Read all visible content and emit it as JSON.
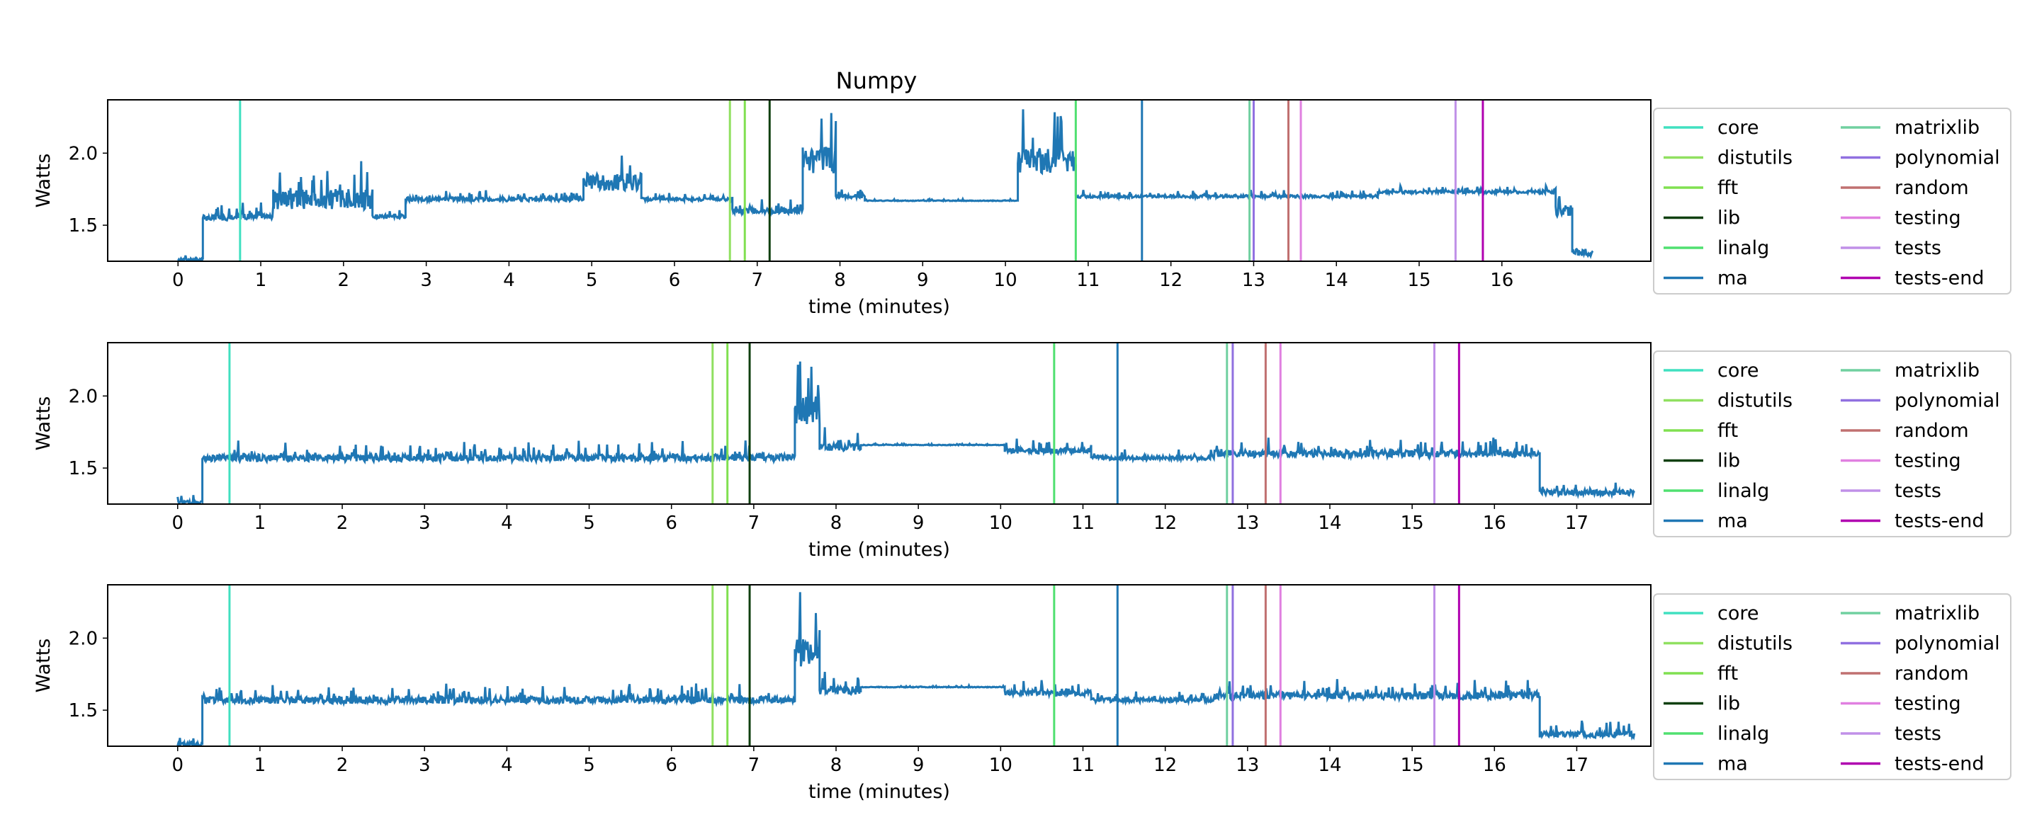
{
  "chart_data": {
    "title": "Numpy",
    "type": "line",
    "legend_placement": "right, outside plot, two columns",
    "legend": [
      {
        "label": "core",
        "color": "#40e0c0"
      },
      {
        "label": "distutils",
        "color": "#90e060"
      },
      {
        "label": "fft",
        "color": "#80e050"
      },
      {
        "label": "lib",
        "color": "#104010"
      },
      {
        "label": "linalg",
        "color": "#50e070"
      },
      {
        "label": "ma",
        "color": "#1f77b4"
      },
      {
        "label": "matrixlib",
        "color": "#70d0a0"
      },
      {
        "label": "polynomial",
        "color": "#9070e0"
      },
      {
        "label": "random",
        "color": "#c07070"
      },
      {
        "label": "testing",
        "color": "#e080e0"
      },
      {
        "label": "tests",
        "color": "#c090e8"
      },
      {
        "label": "tests-end",
        "color": "#b000b0"
      }
    ],
    "line_color": "#1f77b4",
    "panels": [
      {
        "xlabel": "time (minutes)",
        "ylabel": "Watts",
        "xlim": [
          -0.85,
          17.8
        ],
        "ylim": [
          1.25,
          2.37
        ],
        "xticks": [
          "0",
          "1",
          "2",
          "3",
          "4",
          "5",
          "6",
          "7",
          "8",
          "9",
          "10",
          "11",
          "12",
          "13",
          "14",
          "15",
          "16"
        ],
        "yticks": [
          "1.5",
          "2.0"
        ],
        "end_time": 17.1,
        "markers": [
          0.75,
          6.67,
          6.85,
          7.15,
          10.85,
          11.65,
          12.95,
          13.0,
          13.42,
          13.57,
          15.44,
          15.77
        ],
        "segments": [
          {
            "x": [
              0.0,
              0.3
            ],
            "base": 1.26,
            "noise": 0.04
          },
          {
            "x": [
              0.3,
              0.6
            ],
            "base": 1.55,
            "noise": 0.08
          },
          {
            "x": [
              0.6,
              1.15
            ],
            "base": 1.56,
            "noise": 0.08
          },
          {
            "x": [
              1.15,
              2.35
            ],
            "base": 1.68,
            "noise": 0.28
          },
          {
            "x": [
              2.35,
              2.75
            ],
            "base": 1.56,
            "noise": 0.04
          },
          {
            "x": [
              2.75,
              4.9
            ],
            "base": 1.68,
            "noise": 0.06
          },
          {
            "x": [
              4.9,
              5.6
            ],
            "base": 1.8,
            "noise": 0.25
          },
          {
            "x": [
              5.6,
              6.7
            ],
            "base": 1.68,
            "noise": 0.04
          },
          {
            "x": [
              6.7,
              7.55
            ],
            "base": 1.6,
            "noise": 0.08
          },
          {
            "x": [
              7.55,
              7.95
            ],
            "base": 1.95,
            "noise": 0.38
          },
          {
            "x": [
              7.95,
              8.3
            ],
            "base": 1.7,
            "noise": 0.05
          },
          {
            "x": [
              8.3,
              10.15
            ],
            "base": 1.67,
            "noise": 0.01
          },
          {
            "x": [
              10.15,
              10.85
            ],
            "base": 1.95,
            "noise": 0.35
          },
          {
            "x": [
              10.85,
              14.5
            ],
            "base": 1.7,
            "noise": 0.04
          },
          {
            "x": [
              14.5,
              16.65
            ],
            "base": 1.73,
            "noise": 0.04
          },
          {
            "x": [
              16.65,
              16.85
            ],
            "base": 1.6,
            "noise": 0.15
          },
          {
            "x": [
              16.85,
              17.1
            ],
            "base": 1.31,
            "noise": 0.1
          }
        ]
      },
      {
        "xlabel": "time (minutes)",
        "ylabel": "Watts",
        "xlim": [
          -0.85,
          17.9
        ],
        "ylim": [
          1.25,
          2.37
        ],
        "xticks": [
          "0",
          "1",
          "2",
          "3",
          "4",
          "5",
          "6",
          "7",
          "8",
          "9",
          "10",
          "11",
          "12",
          "13",
          "14",
          "15",
          "16",
          "17"
        ],
        "yticks": [
          "1.5",
          "2.0"
        ],
        "end_time": 17.7,
        "markers": [
          0.63,
          6.5,
          6.68,
          6.95,
          10.65,
          11.42,
          12.75,
          12.82,
          13.22,
          13.4,
          15.27,
          15.57
        ],
        "segments": [
          {
            "x": [
              0.0,
              0.3
            ],
            "base": 1.26,
            "noise": 0.06
          },
          {
            "x": [
              0.3,
              7.5
            ],
            "base": 1.57,
            "noise": 0.1
          },
          {
            "x": [
              7.5,
              7.8
            ],
            "base": 1.9,
            "noise": 0.4
          },
          {
            "x": [
              7.8,
              8.3
            ],
            "base": 1.64,
            "noise": 0.12
          },
          {
            "x": [
              8.3,
              10.05
            ],
            "base": 1.66,
            "noise": 0.01
          },
          {
            "x": [
              10.05,
              11.1
            ],
            "base": 1.62,
            "noise": 0.08
          },
          {
            "x": [
              11.1,
              12.6
            ],
            "base": 1.57,
            "noise": 0.06
          },
          {
            "x": [
              12.6,
              16.55
            ],
            "base": 1.6,
            "noise": 0.1
          },
          {
            "x": [
              16.55,
              17.7
            ],
            "base": 1.33,
            "noise": 0.08
          }
        ]
      },
      {
        "xlabel": "time (minutes)",
        "ylabel": "Watts",
        "xlim": [
          -0.85,
          17.9
        ],
        "ylim": [
          1.25,
          2.37
        ],
        "xticks": [
          "0",
          "1",
          "2",
          "3",
          "4",
          "5",
          "6",
          "7",
          "8",
          "9",
          "10",
          "11",
          "12",
          "13",
          "14",
          "15",
          "16",
          "17"
        ],
        "yticks": [
          "1.5",
          "2.0"
        ],
        "end_time": 17.7,
        "markers": [
          0.63,
          6.5,
          6.68,
          6.95,
          10.65,
          11.42,
          12.75,
          12.82,
          13.22,
          13.4,
          15.27,
          15.57
        ],
        "segments": [
          {
            "x": [
              0.0,
              0.3
            ],
            "base": 1.26,
            "noise": 0.06
          },
          {
            "x": [
              0.3,
              7.5
            ],
            "base": 1.57,
            "noise": 0.1
          },
          {
            "x": [
              7.5,
              7.8
            ],
            "base": 1.9,
            "noise": 0.4
          },
          {
            "x": [
              7.8,
              8.3
            ],
            "base": 1.64,
            "noise": 0.12
          },
          {
            "x": [
              8.3,
              10.05
            ],
            "base": 1.66,
            "noise": 0.01
          },
          {
            "x": [
              10.05,
              11.1
            ],
            "base": 1.62,
            "noise": 0.08
          },
          {
            "x": [
              11.1,
              12.6
            ],
            "base": 1.57,
            "noise": 0.06
          },
          {
            "x": [
              12.6,
              16.55
            ],
            "base": 1.6,
            "noise": 0.1
          },
          {
            "x": [
              16.55,
              17.7
            ],
            "base": 1.33,
            "noise": 0.08
          }
        ]
      }
    ]
  }
}
